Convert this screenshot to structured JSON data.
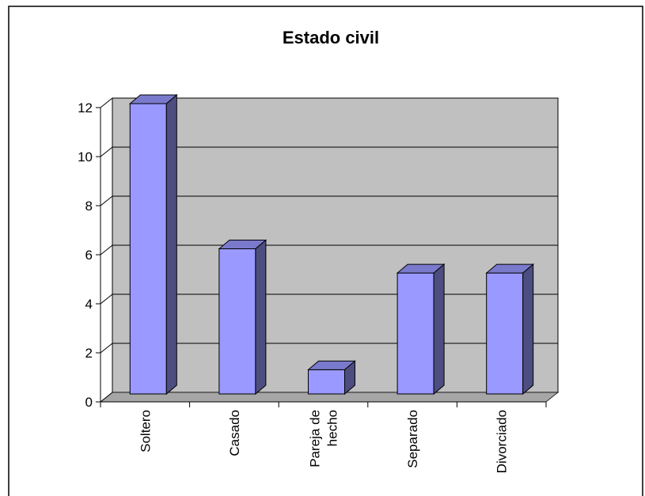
{
  "chart_data": {
    "type": "bar",
    "title": "Estado civil",
    "xlabel": "",
    "ylabel": "",
    "categories": [
      "Soltero",
      "Casado",
      "Pareja de hecho",
      "Separado",
      "Divorciado"
    ],
    "category_lines": [
      [
        "Soltero"
      ],
      [
        "Casado"
      ],
      [
        "Pareja de",
        "hecho"
      ],
      [
        "Separado"
      ],
      [
        "Divorciado"
      ]
    ],
    "values": [
      12,
      6,
      1,
      5,
      5
    ],
    "ylim": [
      0,
      12
    ],
    "yticks": [
      0,
      2,
      4,
      6,
      8,
      10,
      12
    ],
    "grid": true,
    "legend": "none",
    "style": "3d-column"
  },
  "colors": {
    "plot_background": "#c0c0c0",
    "bar_front": "#9999ff",
    "bar_top": "#7a7acc",
    "bar_side": "#4d4d80",
    "grid": "#000000",
    "frame": "#000000"
  }
}
